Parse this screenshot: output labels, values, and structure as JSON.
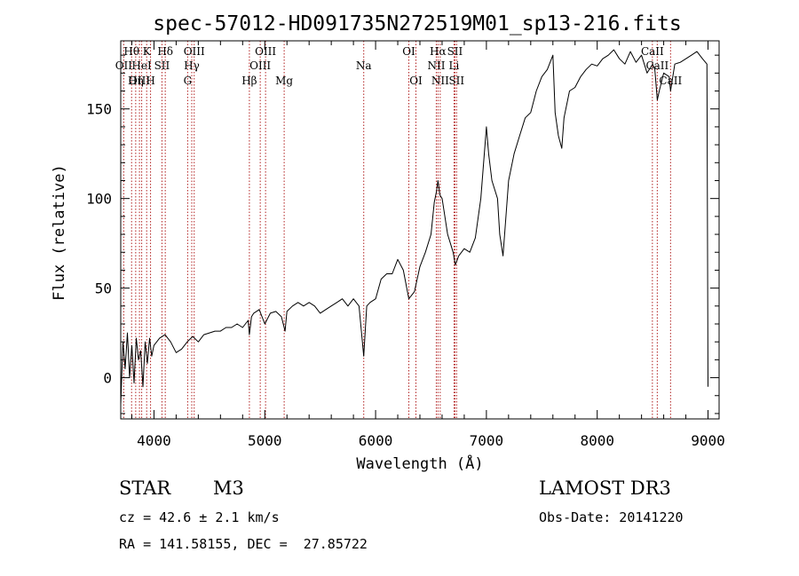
{
  "chart_data": {
    "type": "line",
    "title": "spec-57012-HD091735N272519M01_sp13-216.fits",
    "xlabel": "Wavelength (Å)",
    "ylabel": "Flux (relative)",
    "xlim": [
      3700,
      9100
    ],
    "ylim": [
      -23,
      188
    ],
    "x_ticks": [
      4000,
      5000,
      6000,
      7000,
      8000,
      9000
    ],
    "x_tick_labels": [
      "4000",
      "5000",
      "6000",
      "7000",
      "8000",
      "9000"
    ],
    "y_ticks": [
      0,
      50,
      100,
      150
    ],
    "y_tick_labels": [
      "0",
      "50",
      "100",
      "150"
    ],
    "grid": false,
    "series": [
      {
        "name": "spectrum",
        "color": "#000000",
        "x": [
          3700,
          3720,
          3740,
          3760,
          3780,
          3800,
          3820,
          3840,
          3860,
          3880,
          3900,
          3920,
          3940,
          3960,
          3980,
          4000,
          4050,
          4100,
          4150,
          4200,
          4250,
          4300,
          4350,
          4400,
          4450,
          4500,
          4550,
          4600,
          4650,
          4700,
          4750,
          4800,
          4850,
          4861,
          4880,
          4900,
          4950,
          5000,
          5050,
          5100,
          5150,
          5183,
          5200,
          5250,
          5300,
          5350,
          5400,
          5450,
          5500,
          5550,
          5600,
          5650,
          5700,
          5750,
          5800,
          5850,
          5893,
          5920,
          5950,
          6000,
          6050,
          6100,
          6150,
          6200,
          6250,
          6300,
          6350,
          6400,
          6450,
          6500,
          6530,
          6550,
          6563,
          6580,
          6600,
          6650,
          6700,
          6720,
          6750,
          6800,
          6850,
          6900,
          6950,
          7000,
          7020,
          7050,
          7100,
          7120,
          7150,
          7200,
          7250,
          7300,
          7350,
          7400,
          7450,
          7500,
          7550,
          7600,
          7620,
          7650,
          7680,
          7700,
          7750,
          7800,
          7850,
          7900,
          7950,
          8000,
          8050,
          8100,
          8150,
          8200,
          8250,
          8300,
          8350,
          8400,
          8450,
          8500,
          8520,
          8542,
          8560,
          8600,
          8650,
          8662,
          8700,
          8750,
          8800,
          8850,
          8900,
          8950,
          8990,
          9000
        ],
        "y": [
          -15,
          20,
          5,
          25,
          0,
          18,
          -3,
          22,
          10,
          15,
          -5,
          20,
          8,
          22,
          12,
          18,
          22,
          24,
          20,
          14,
          16,
          20,
          23,
          20,
          24,
          25,
          26,
          26,
          28,
          28,
          30,
          28,
          32,
          24,
          34,
          36,
          38,
          30,
          36,
          37,
          34,
          26,
          37,
          40,
          42,
          40,
          42,
          40,
          36,
          38,
          40,
          42,
          44,
          40,
          44,
          40,
          12,
          40,
          42,
          44,
          55,
          58,
          58,
          66,
          60,
          44,
          48,
          62,
          70,
          80,
          98,
          104,
          110,
          102,
          100,
          80,
          70,
          63,
          68,
          72,
          70,
          78,
          100,
          140,
          125,
          110,
          100,
          80,
          68,
          110,
          125,
          135,
          145,
          148,
          160,
          168,
          172,
          180,
          148,
          135,
          128,
          145,
          160,
          162,
          168,
          172,
          175,
          174,
          178,
          180,
          183,
          178,
          175,
          182,
          176,
          180,
          170,
          175,
          172,
          155,
          160,
          170,
          168,
          160,
          175,
          176,
          178,
          180,
          182,
          178,
          175,
          -5
        ]
      }
    ],
    "line_markers": [
      {
        "label": "Hθ",
        "x": 3798,
        "row": 1
      },
      {
        "label": "OII",
        "x": 3727,
        "row": 2
      },
      {
        "label": "OIII",
        "x": 3869,
        "row": 3
      },
      {
        "label": "HeI",
        "x": 3889,
        "row": 2
      },
      {
        "label": "Hη",
        "x": 3835,
        "row": 3
      },
      {
        "label": "K",
        "x": 3934,
        "row": 1
      },
      {
        "label": "SII",
        "x": 4072,
        "row": 2
      },
      {
        "label": "H",
        "x": 3969,
        "row": 3
      },
      {
        "label": "Hδ",
        "x": 4102,
        "row": 1
      },
      {
        "label": "OIII",
        "x": 4363,
        "row": 1
      },
      {
        "label": "Hγ",
        "x": 4341,
        "row": 2
      },
      {
        "label": "G",
        "x": 4304,
        "row": 3
      },
      {
        "label": "OIII",
        "x": 5007,
        "row": 1
      },
      {
        "label": "OIII",
        "x": 4959,
        "row": 2
      },
      {
        "label": "Hβ",
        "x": 4861,
        "row": 3
      },
      {
        "label": "Mg",
        "x": 5175,
        "row": 3
      },
      {
        "label": "Na",
        "x": 5893,
        "row": 2
      },
      {
        "label": "OI",
        "x": 6300,
        "row": 1
      },
      {
        "label": "OI",
        "x": 6364,
        "row": 3
      },
      {
        "label": "Hα",
        "x": 6563,
        "row": 1
      },
      {
        "label": "NII",
        "x": 6548,
        "row": 2
      },
      {
        "label": "NII",
        "x": 6583,
        "row": 3
      },
      {
        "label": "SII",
        "x": 6716,
        "row": 1
      },
      {
        "label": "Li",
        "x": 6708,
        "row": 2
      },
      {
        "label": "SII",
        "x": 6731,
        "row": 3
      },
      {
        "label": "CaII",
        "x": 8498,
        "row": 1
      },
      {
        "label": "CaII",
        "x": 8542,
        "row": 2
      },
      {
        "label": "CaII",
        "x": 8662,
        "row": 3
      }
    ]
  },
  "info": {
    "object_type": "STAR",
    "subclass": "M3",
    "survey": "LAMOST DR3",
    "redshift": "cz = 42.6 ± 2.1 km/s",
    "obs_date": "Obs-Date: 20141220",
    "coordinates": "RA = 141.58155, DEC =  27.85722"
  },
  "colors": {
    "spectrum": "#000000",
    "marker_line": "#b22222",
    "axes": "#000000"
  }
}
